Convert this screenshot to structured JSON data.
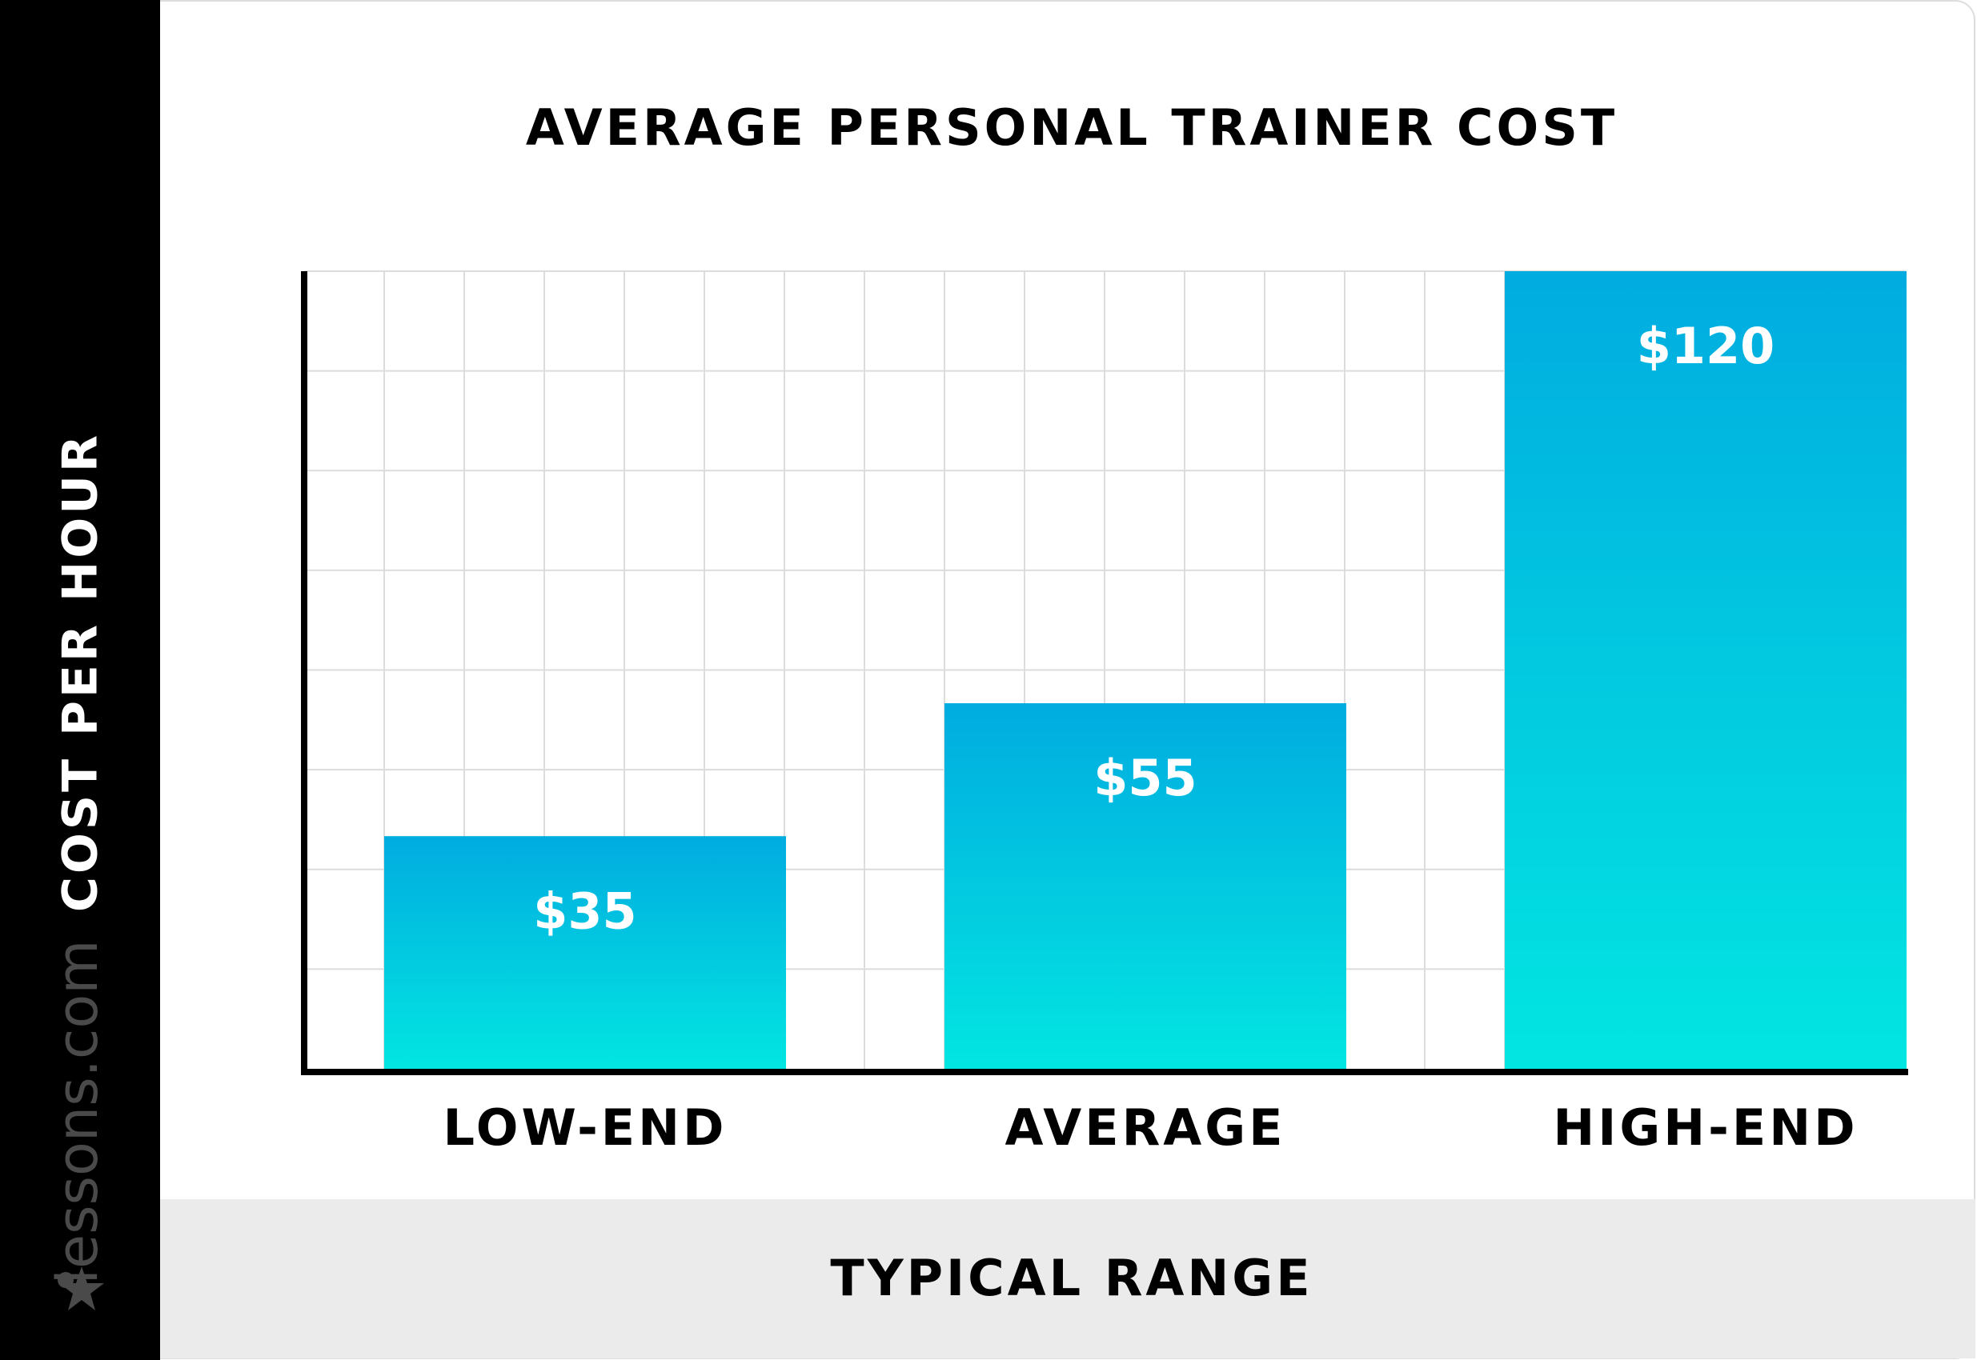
{
  "chart_data": {
    "type": "bar",
    "title": "AVERAGE PERSONAL TRAINER COST",
    "y_label": "COST PER HOUR",
    "x_label": "TYPICAL RANGE",
    "watermark": "lessons.com",
    "categories": [
      "LOW-END",
      "AVERAGE",
      "HIGH-END"
    ],
    "values": [
      35,
      55,
      120
    ],
    "value_labels": [
      "$35",
      "$55",
      "$120"
    ],
    "color_top": "#01ace0",
    "color_bottom": "#02e6e1",
    "ylim": [
      0,
      120
    ],
    "grid": true
  }
}
